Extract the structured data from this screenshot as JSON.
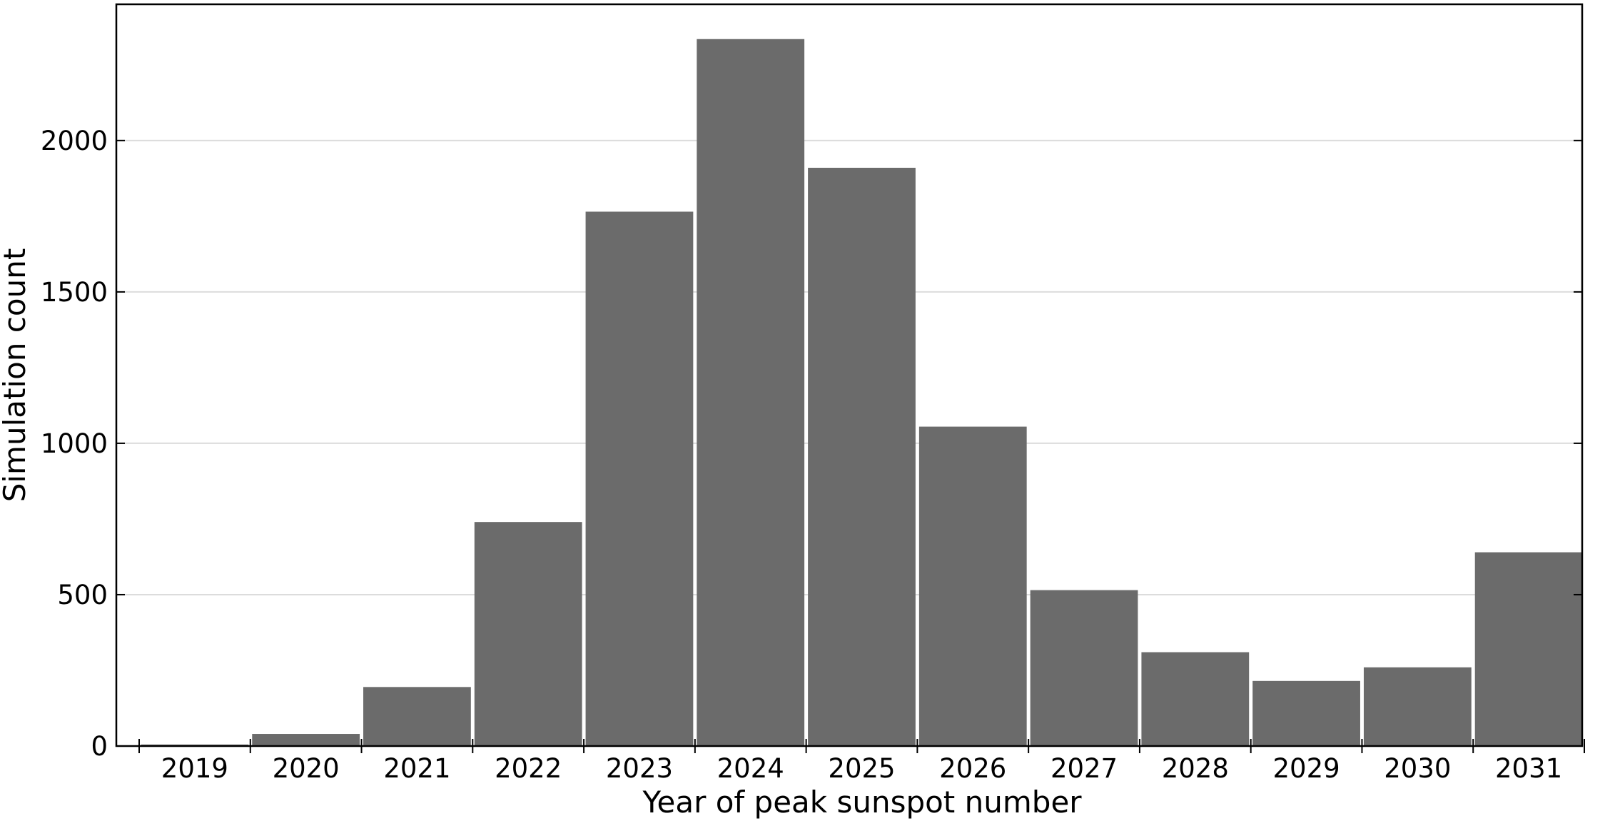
{
  "chart_data": {
    "type": "bar",
    "title": "",
    "xlabel": "Year of peak sunspot number",
    "ylabel": "Simulation count",
    "categories": [
      "2019",
      "2020",
      "2021",
      "2022",
      "2023",
      "2024",
      "2025",
      "2026",
      "2027",
      "2028",
      "2029",
      "2030",
      "2031"
    ],
    "values": [
      5,
      40,
      195,
      740,
      1765,
      2335,
      1910,
      1055,
      515,
      310,
      215,
      260,
      640
    ],
    "ylim": [
      0,
      2450
    ],
    "yticks": [
      "0",
      "500",
      "1000",
      "1500",
      "2000"
    ],
    "ytick_values": [
      0,
      500,
      1000,
      1500,
      2000
    ],
    "grid": "horizontal",
    "bar_color": "#6b6b6b",
    "grid_color": "#dcdcdc"
  }
}
